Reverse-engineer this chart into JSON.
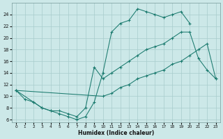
{
  "background_color": "#cce8e8",
  "grid_color": "#a8cccc",
  "line_color": "#1a7a6e",
  "xlabel": "Humidex (Indice chaleur)",
  "xlim": [
    -0.5,
    23.5
  ],
  "ylim": [
    5.5,
    26.0
  ],
  "xticks": [
    0,
    1,
    2,
    3,
    4,
    5,
    6,
    7,
    8,
    9,
    10,
    11,
    12,
    13,
    14,
    15,
    16,
    17,
    18,
    19,
    20,
    21,
    22,
    23
  ],
  "yticks": [
    6,
    8,
    10,
    12,
    14,
    16,
    18,
    20,
    22,
    24
  ],
  "line1_x": [
    0,
    1,
    2,
    3,
    4,
    5,
    6,
    7,
    8,
    9,
    10,
    11,
    12,
    13,
    14,
    15,
    16,
    17,
    18,
    19,
    20
  ],
  "line1_y": [
    11,
    9.5,
    9,
    8,
    7.5,
    7,
    6.5,
    6,
    6.5,
    9,
    14,
    21,
    22.5,
    23,
    25,
    24.5,
    24,
    23.5,
    24,
    24.5,
    22.5
  ],
  "line2_x": [
    0,
    2,
    3,
    4,
    5,
    6,
    7,
    8,
    9,
    10,
    11,
    12,
    13,
    14,
    15,
    16,
    17,
    18,
    19,
    20,
    21,
    22,
    23
  ],
  "line2_y": [
    11,
    9,
    8,
    7.5,
    7.5,
    7,
    6.5,
    8,
    15,
    13,
    14,
    15,
    16,
    17,
    18,
    18.5,
    19,
    20,
    21,
    21,
    16.5,
    14.5,
    13
  ],
  "line3_x": [
    0,
    10,
    11,
    12,
    13,
    14,
    15,
    16,
    17,
    18,
    19,
    20,
    21,
    22,
    23
  ],
  "line3_y": [
    11,
    10,
    10.5,
    11.5,
    12,
    13,
    13.5,
    14,
    14.5,
    15.5,
    16,
    17,
    18,
    19,
    13
  ]
}
